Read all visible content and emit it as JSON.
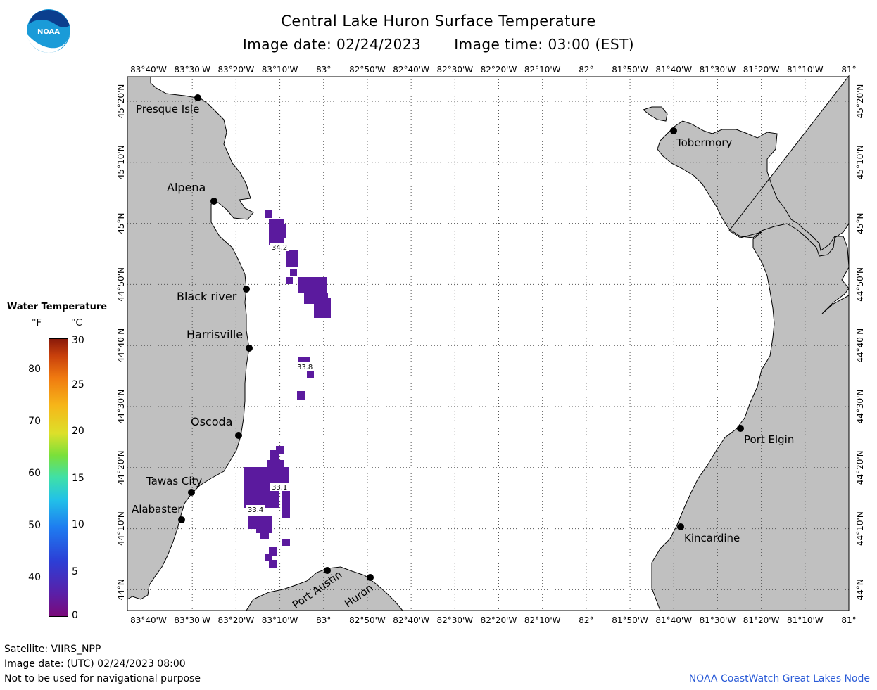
{
  "header": {
    "title": "Central Lake Huron Surface Temperature",
    "image_date": "Image date: 02/24/2023",
    "image_time": "Image time: 03:00 (EST)"
  },
  "map": {
    "lon_labels": [
      "83°40'W",
      "83°30'W",
      "83°20'W",
      "83°10'W",
      "83°",
      "82°50'W",
      "82°40'W",
      "82°30'W",
      "82°20'W",
      "82°10'W",
      "82°",
      "81°50'W",
      "81°40'W",
      "81°30'W",
      "81°20'W",
      "81°10'W",
      "81°"
    ],
    "lat_labels": [
      "45°20'N",
      "45°10'N",
      "45°N",
      "44°50'N",
      "44°40'N",
      "44°30'N",
      "44°20'N",
      "44°10'N",
      "44°N"
    ],
    "land_color": "#c0c0c0",
    "water_color": "#ffffff",
    "cities": [
      {
        "name": "Presque Isle"
      },
      {
        "name": "Alpena"
      },
      {
        "name": "Black river"
      },
      {
        "name": "Harrisville"
      },
      {
        "name": "Oscoda"
      },
      {
        "name": "Tawas City"
      },
      {
        "name": "Alabaster"
      },
      {
        "name": "Port Austin"
      },
      {
        "name": "Huron"
      },
      {
        "name": "Tobermory"
      },
      {
        "name": "Port Elgin"
      },
      {
        "name": "Kincardine"
      }
    ],
    "temperature_labels": [
      "34.2",
      "33.8",
      "33.1",
      "33.4"
    ],
    "data_color": "#5b1a9e"
  },
  "legend": {
    "title": "Water Temperature",
    "unit_f": "°F",
    "unit_c": "°C",
    "ticks_f": [
      "80",
      "70",
      "60",
      "50",
      "40"
    ],
    "ticks_c": [
      "30",
      "25",
      "20",
      "15",
      "10",
      "5",
      "0"
    ]
  },
  "footer": {
    "satellite": "Satellite: VIIRS_NPP",
    "utc_date": "Image date: (UTC) 02/24/2023  08:00",
    "disclaimer": "Not to be used for navigational purpose",
    "credit": "NOAA CoastWatch Great Lakes Node"
  }
}
